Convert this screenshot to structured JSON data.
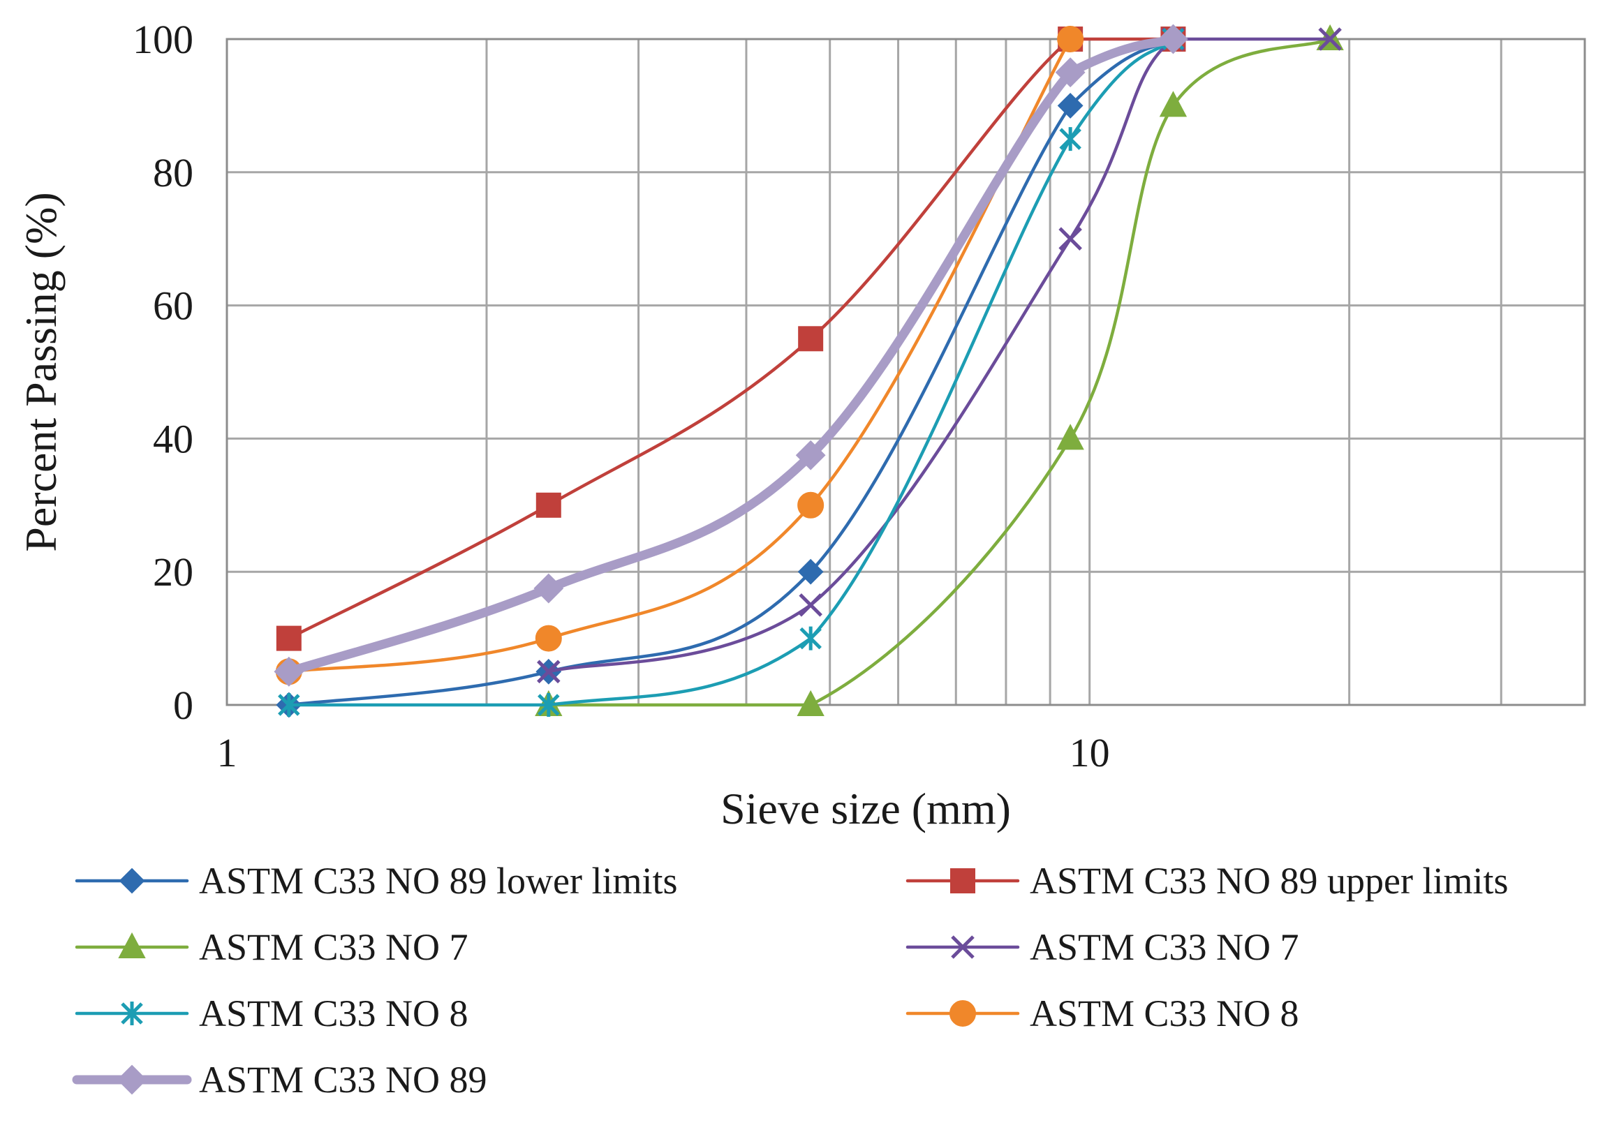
{
  "chart_data": {
    "type": "line",
    "title": "",
    "xlabel": "Sieve size (mm)",
    "ylabel": "Percent Passing (%)",
    "xscale": "log",
    "xlim": [
      1,
      37.5
    ],
    "ylim": [
      0,
      100
    ],
    "xticks": [
      1,
      10
    ],
    "xtick_labels": [
      "1",
      "10"
    ],
    "yticks": [
      0,
      20,
      40,
      60,
      80,
      100
    ],
    "ytick_labels": [
      "0",
      "20",
      "40",
      "60",
      "80",
      "100"
    ],
    "grid": true,
    "legend_position": "bottom",
    "series": [
      {
        "name": "ASTM C33 NO 89 lower limits",
        "color": "#2E6BAF",
        "marker": "diamond",
        "x": [
          1.18,
          2.36,
          4.75,
          9.5,
          12.5
        ],
        "y": [
          0,
          5,
          20,
          90,
          100
        ]
      },
      {
        "name": "ASTM C33 NO 89 upper limits",
        "color": "#C0403B",
        "marker": "square",
        "x": [
          1.18,
          2.36,
          4.75,
          9.5,
          12.5
        ],
        "y": [
          10,
          30,
          55,
          100,
          100
        ]
      },
      {
        "name": "ASTM C33 NO 7",
        "color": "#7EAD3E",
        "marker": "triangle",
        "x": [
          2.36,
          4.75,
          9.5,
          12.5,
          19.0
        ],
        "y": [
          0,
          0,
          40,
          90,
          100
        ]
      },
      {
        "name": "ASTM C33 NO 7",
        "color": "#6B4C9A",
        "marker": "x",
        "x": [
          2.36,
          4.75,
          9.5,
          12.5,
          19.0
        ],
        "y": [
          5,
          15,
          70,
          100,
          100
        ]
      },
      {
        "name": "ASTM C33 NO 8",
        "color": "#1C9DB3",
        "marker": "asterisk",
        "x": [
          1.18,
          2.36,
          4.75,
          9.5,
          12.5
        ],
        "y": [
          0,
          0,
          10,
          85,
          100
        ]
      },
      {
        "name": "ASTM C33 NO 8",
        "color": "#F0872A",
        "marker": "circle",
        "x": [
          1.18,
          2.36,
          4.75,
          9.5
        ],
        "y": [
          5,
          10,
          30,
          100
        ]
      },
      {
        "name": "ASTM C33 NO 89",
        "color": "#A89CC6",
        "marker": "diamond",
        "thick": true,
        "x": [
          1.18,
          2.36,
          4.75,
          9.5,
          12.5
        ],
        "y": [
          5,
          17.5,
          37.5,
          95,
          100
        ]
      }
    ]
  }
}
